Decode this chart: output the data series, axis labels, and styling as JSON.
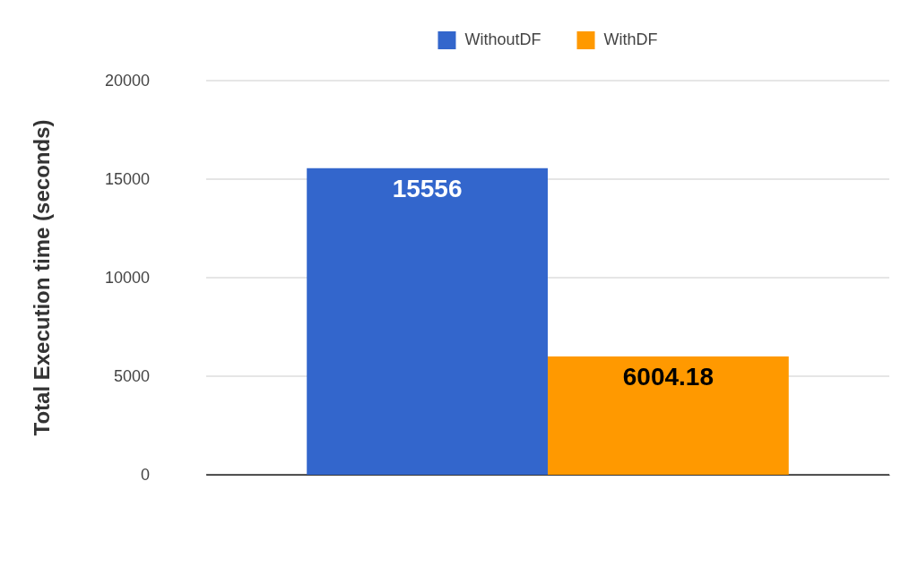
{
  "chart_data": {
    "type": "bar",
    "ylabel": "Total Execution time (seconds)",
    "categories": [
      null
    ],
    "series": [
      {
        "name": "WithoutDF",
        "color": "#3366cc",
        "values": [
          15556
        ]
      },
      {
        "name": "WithDF",
        "color": "#ff9900",
        "values": [
          6004.18
        ]
      }
    ],
    "ylim": [
      0,
      20000
    ],
    "yticks": [
      0,
      5000,
      10000,
      15000,
      20000
    ],
    "grid": "y",
    "legend": "top",
    "data_labels": true
  }
}
